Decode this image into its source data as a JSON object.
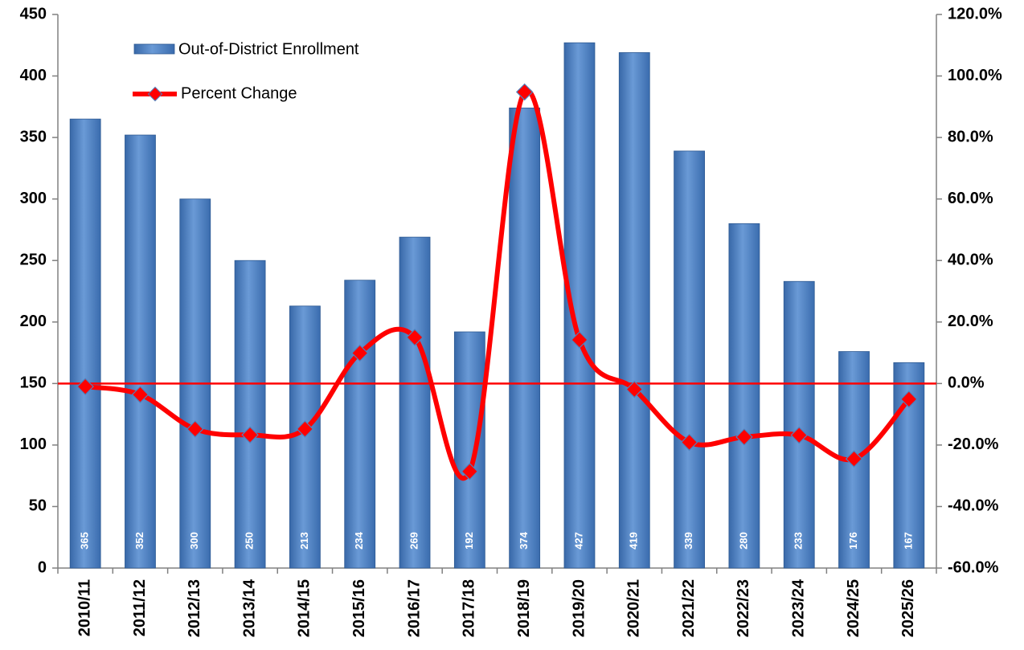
{
  "chart_data": {
    "type": "bar",
    "categories": [
      "2010/11",
      "2011/12",
      "2012/13",
      "2013/14",
      "2014/15",
      "2015/16",
      "2016/17",
      "2017/18",
      "2018/19",
      "2019/20",
      "2020/21",
      "2021/22",
      "2022/23",
      "2023/24",
      "2024/25",
      "2025/26"
    ],
    "series": [
      {
        "name": "Out-of-District Enrollment",
        "type": "bar",
        "color": "#4f81bd",
        "values": [
          365,
          352,
          300,
          250,
          213,
          234,
          269,
          192,
          374,
          427,
          419,
          339,
          280,
          233,
          176,
          167
        ]
      },
      {
        "name": "Percent Change",
        "type": "line",
        "axis": "y2",
        "color": "#ff0000",
        "values": [
          -1.0,
          -3.6,
          -14.8,
          -16.7,
          -14.8,
          9.9,
          15.0,
          -28.6,
          94.8,
          14.2,
          -1.9,
          -19.1,
          -17.4,
          -16.8,
          -24.5,
          -5.1
        ]
      }
    ],
    "ylim": [
      0,
      450
    ],
    "yticks": [
      0,
      50,
      100,
      150,
      200,
      250,
      300,
      350,
      400,
      450
    ],
    "y2lim": [
      -60,
      120
    ],
    "y2ticks": [
      {
        "value": -60,
        "label": "-60.0%"
      },
      {
        "value": -40,
        "label": "-40.0%"
      },
      {
        "value": -20,
        "label": "-20.0%"
      },
      {
        "value": 0,
        "label": "0.0%"
      },
      {
        "value": 20,
        "label": "20.0%"
      },
      {
        "value": 40,
        "label": "40.0%"
      },
      {
        "value": 60,
        "label": "60.0%"
      },
      {
        "value": 80,
        "label": "80.0%"
      },
      {
        "value": 100,
        "label": "100.0%"
      },
      {
        "value": 120,
        "label": "120.0%"
      }
    ]
  }
}
